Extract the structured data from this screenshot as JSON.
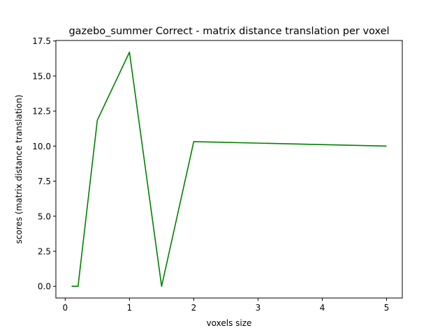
{
  "chart_data": {
    "type": "line",
    "title": "gazebo_summer Correct - matrix distance translation per voxel",
    "xlabel": "voxels size",
    "ylabel": "scores (matrix distance translation)",
    "xlim": [
      -0.145,
      5.245
    ],
    "ylim": [
      -0.835,
      17.535
    ],
    "x_ticks": [
      0,
      1,
      2,
      3,
      4,
      5
    ],
    "x_tick_labels": [
      "0",
      "1",
      "2",
      "3",
      "4",
      "5"
    ],
    "y_ticks": [
      0.0,
      2.5,
      5.0,
      7.5,
      10.0,
      12.5,
      15.0,
      17.5
    ],
    "y_tick_labels": [
      "0.0",
      "2.5",
      "5.0",
      "7.5",
      "10.0",
      "12.5",
      "15.0",
      "17.5"
    ],
    "grid": false,
    "series": [
      {
        "color": "#008000",
        "x": [
          0.1,
          0.2,
          0.5,
          1.0,
          1.5,
          2.0,
          5.0
        ],
        "values": [
          0.0,
          0.0,
          11.85,
          16.7,
          0.0,
          10.32,
          10.0
        ]
      }
    ]
  }
}
